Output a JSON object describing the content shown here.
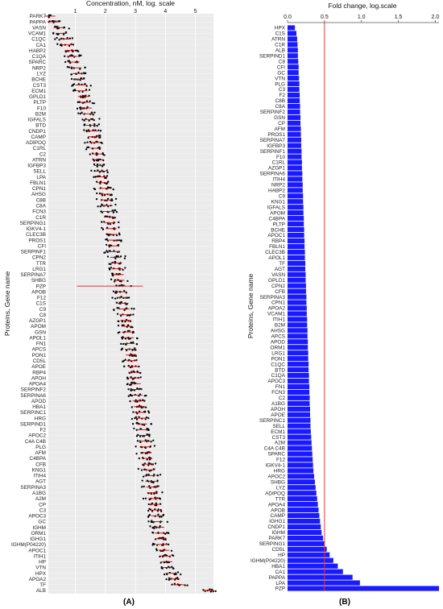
{
  "panels": {
    "a_label": "(A)",
    "b_label": "(B)"
  },
  "chart_data": [
    {
      "type": "scatter",
      "panel": "A",
      "title": "",
      "xlabel": "Concentration, nM, log. scale",
      "ylabel": "Proteins, Gene name",
      "xlim": [
        0.1,
        5.6
      ],
      "xticks": [
        1,
        2,
        3,
        4,
        5
      ],
      "grid": true,
      "background": "#ebebeb",
      "point_color": "#000000",
      "median_color": "#cc0000",
      "categories": [
        "PARK7",
        "PAPPA",
        "VASN",
        "VCAM1",
        "C1QC",
        "CA1",
        "HABP2",
        "C1QA",
        "SPARC",
        "NRP2",
        "LYZ",
        "BCHE",
        "CST3",
        "ECM1",
        "GPLD1",
        "PLTP",
        "F10",
        "B2M",
        "IGFALS",
        "BTD",
        "CNDP1",
        "CAMP",
        "ADIPOQ",
        "C1RL",
        "C2",
        "ATRN",
        "IGFBP3",
        "SELL",
        "LPA",
        "FBLN1",
        "CPN1",
        "AHSG",
        "C8B",
        "C8A",
        "FCN3",
        "C1R",
        "SERPING1",
        "IGKV4-1",
        "CLEC3B",
        "PROS1",
        "CFI",
        "SERPINF1",
        "CPN2",
        "TTR",
        "LRG1",
        "SERPINA7",
        "SHBG",
        "PZP",
        "APOB",
        "F12",
        "C1S",
        "C9",
        "C8",
        "AZGP1",
        "APOM",
        "GSN",
        "APOL1",
        "FN1",
        "APCS",
        "PON1",
        "CD5L",
        "APOE",
        "RBP4",
        "APOH",
        "APOA4",
        "SERPINF2",
        "SERPINA6",
        "APOD",
        "HBA1",
        "SERPINC1",
        "HRG",
        "SERPIND1",
        "F2",
        "APOC2",
        "C4A C4B",
        "PLG",
        "AFM",
        "C4BPA",
        "CFB",
        "KNG1",
        "ITIH4",
        "AGT",
        "SERPINA3",
        "A1BG",
        "A2M",
        "CP",
        "C3",
        "APOC3",
        "GC",
        "IGHM",
        "ORM1",
        "IGHG1",
        "IGHM(P04220)",
        "APOC1",
        "ITIH1",
        "HP",
        "VTN",
        "HPX",
        "APOA2",
        "TF",
        "ALB"
      ],
      "medians": [
        0.15,
        0.25,
        0.45,
        0.55,
        0.65,
        0.72,
        0.82,
        0.9,
        0.96,
        1.02,
        1.08,
        1.12,
        1.18,
        1.22,
        1.27,
        1.32,
        1.37,
        1.42,
        1.47,
        1.52,
        1.56,
        1.6,
        1.64,
        1.68,
        1.72,
        1.76,
        1.8,
        1.84,
        1.88,
        1.92,
        1.96,
        2.0,
        2.03,
        2.06,
        2.1,
        2.13,
        2.16,
        2.19,
        2.22,
        2.25,
        2.28,
        2.31,
        2.34,
        2.37,
        2.4,
        2.43,
        2.46,
        2.5,
        2.53,
        2.56,
        2.59,
        2.62,
        2.65,
        2.68,
        2.71,
        2.74,
        2.77,
        2.8,
        2.83,
        2.86,
        2.89,
        2.92,
        2.95,
        2.98,
        3.0,
        3.03,
        3.06,
        3.09,
        3.12,
        3.15,
        3.18,
        3.21,
        3.24,
        3.27,
        3.3,
        3.33,
        3.36,
        3.39,
        3.42,
        3.45,
        3.48,
        3.51,
        3.54,
        3.57,
        3.6,
        3.63,
        3.66,
        3.7,
        3.74,
        3.78,
        3.82,
        3.86,
        3.9,
        3.95,
        4.0,
        4.05,
        4.1,
        4.18,
        4.3,
        4.45,
        5.45
      ]
    },
    {
      "type": "bar",
      "panel": "B",
      "orientation": "horizontal",
      "title": "",
      "xlabel": "Fold change, log.scale",
      "ylabel": "Proteins, Gene name",
      "xlim": [
        0,
        2.05
      ],
      "xticks": [
        0.0,
        0.5,
        1.0,
        1.5,
        2.0
      ],
      "reference_line": 0.5,
      "reference_color": "#e53935",
      "bar_color": "#1a1aff",
      "grid": false,
      "categories": [
        "HPX",
        "C1S",
        "ATRN",
        "C1R",
        "ALB",
        "SERPIND1",
        "C8",
        "CFI",
        "GC",
        "VTN",
        "PLG",
        "C3",
        "F2",
        "C8B",
        "C8A",
        "SERPINF2",
        "GSN",
        "CP",
        "AFM",
        "PROS1",
        "SERPINA7",
        "IGFBP3",
        "SERPINF1",
        "F10",
        "C1RL",
        "AZGP1",
        "SERPINA6",
        "ITIH4",
        "NRP2",
        "HABP2",
        "C9",
        "KNG1",
        "IGFALS",
        "APOM",
        "C4BPA",
        "PLTP",
        "BCHE",
        "APOC1",
        "RBP4",
        "FBLN1",
        "CLEC3B",
        "APOL1",
        "TF",
        "AGT",
        "VASN",
        "GPLD1",
        "CPN2",
        "CFB",
        "SERPINA3",
        "CPN1",
        "APOA2",
        "VCAM1",
        "ITIH1",
        "B2M",
        "AHSG",
        "APCS",
        "APOD",
        "ORM1",
        "LRG1",
        "PON1",
        "C1QC",
        "BTD",
        "C1QA",
        "APOC3",
        "FN1",
        "FCN3",
        "C2",
        "A1BG",
        "APOH",
        "APOE",
        "SERPINC1",
        "SELL",
        "ECM1",
        "CST3",
        "A2M",
        "C4A C4B",
        "SPARC",
        "F12",
        "IGKV4-1",
        "HRG",
        "APOC2",
        "SHBG",
        "LYZ",
        "ADIPOQ",
        "TTR",
        "APOA4",
        "APOB",
        "CAMP",
        "IGHG1",
        "CNDP1",
        "IGHM",
        "PARK7",
        "SERPING1",
        "CD5L",
        "HP",
        "IGHM(P04220)",
        "HBA1",
        "CA1",
        "PAPPA",
        "LPA",
        "PZP"
      ],
      "values": [
        0.1,
        0.12,
        0.13,
        0.135,
        0.14,
        0.14,
        0.145,
        0.15,
        0.15,
        0.155,
        0.16,
        0.16,
        0.165,
        0.165,
        0.17,
        0.17,
        0.175,
        0.175,
        0.18,
        0.18,
        0.185,
        0.185,
        0.19,
        0.19,
        0.195,
        0.195,
        0.2,
        0.2,
        0.205,
        0.205,
        0.21,
        0.21,
        0.215,
        0.215,
        0.22,
        0.22,
        0.225,
        0.225,
        0.23,
        0.23,
        0.235,
        0.235,
        0.24,
        0.24,
        0.245,
        0.245,
        0.25,
        0.25,
        0.255,
        0.255,
        0.26,
        0.26,
        0.265,
        0.265,
        0.27,
        0.27,
        0.275,
        0.275,
        0.28,
        0.28,
        0.285,
        0.285,
        0.29,
        0.29,
        0.295,
        0.295,
        0.3,
        0.3,
        0.305,
        0.305,
        0.31,
        0.31,
        0.315,
        0.32,
        0.325,
        0.33,
        0.335,
        0.34,
        0.345,
        0.35,
        0.36,
        0.37,
        0.38,
        0.39,
        0.4,
        0.41,
        0.42,
        0.43,
        0.44,
        0.45,
        0.46,
        0.48,
        0.5,
        0.53,
        0.57,
        0.62,
        0.68,
        0.75,
        0.88,
        0.98,
        2.05
      ]
    }
  ]
}
